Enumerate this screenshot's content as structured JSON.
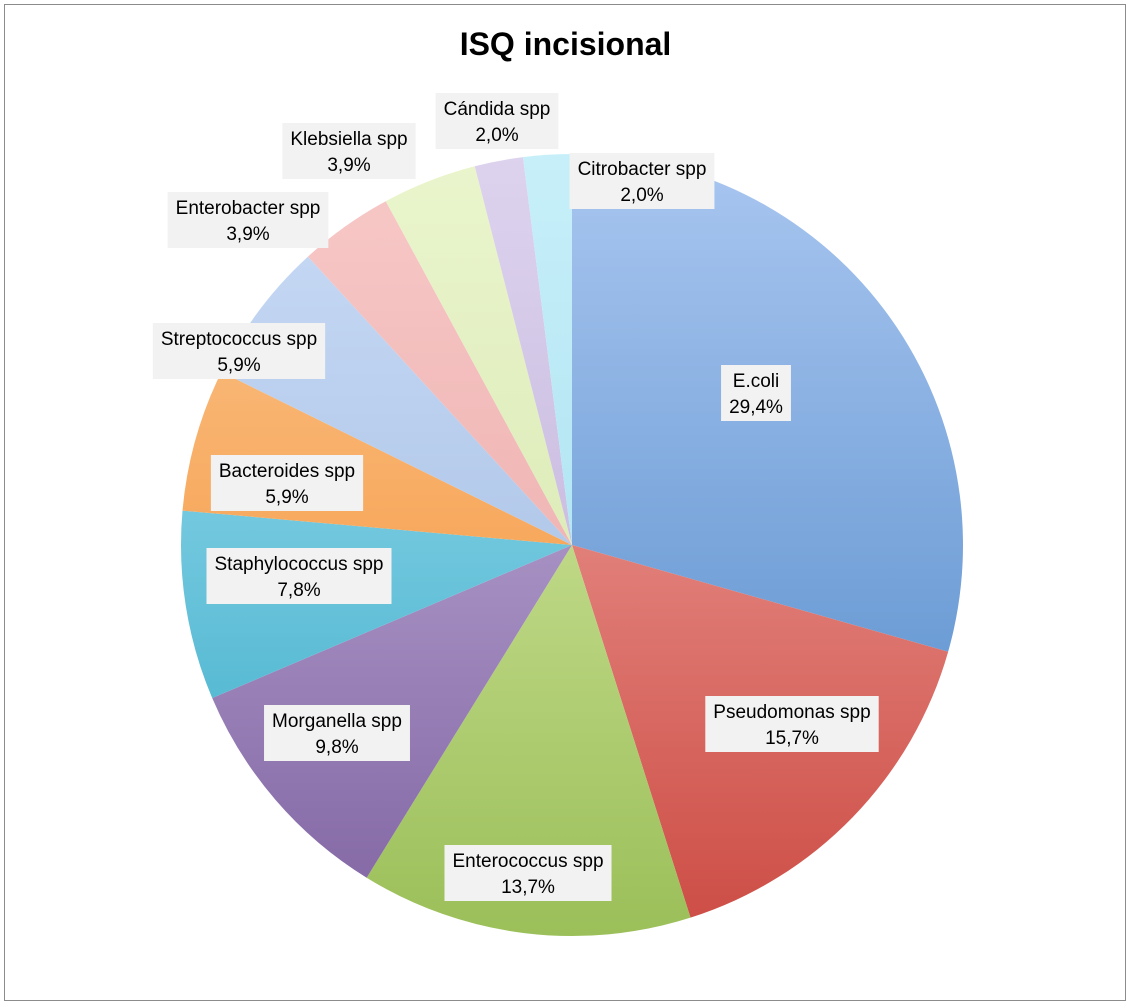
{
  "chart_data": {
    "type": "pie",
    "title": "ISQ incisional",
    "slices": [
      {
        "label": "E.coli",
        "value": 29.4,
        "display": "29,4%",
        "color_light": "#a9c6f0",
        "color_dark": "#4a85c6"
      },
      {
        "label": "Pseudomonas spp",
        "value": 15.7,
        "display": "15,7%",
        "color_light": "#f6b2ae",
        "color_dark": "#cc4c44"
      },
      {
        "label": "Enterococcus spp",
        "value": 13.7,
        "display": "13,7%",
        "color_light": "#e2f1b3",
        "color_dark": "#9bbf59"
      },
      {
        "label": "Morganella spp",
        "value": 9.8,
        "display": "9,8%",
        "color_light": "#cdbde3",
        "color_dark": "#8064a2"
      },
      {
        "label": "Staphylococcus spp",
        "value": 7.8,
        "display": "7,8%",
        "color_light": "#a6e3f3",
        "color_dark": "#36a9c6"
      },
      {
        "label": "Bacteroides spp",
        "value": 5.9,
        "display": "5,9%",
        "color_light": "#fbc690",
        "color_dark": "#f38b2a"
      },
      {
        "label": "Streptococcus spp",
        "value": 5.9,
        "display": "5,9%",
        "color_light": "#c9dcf7",
        "color_dark": "#9db6dc"
      },
      {
        "label": "Enterobacter spp",
        "value": 3.9,
        "display": "3,9%",
        "color_light": "#f7c9c8",
        "color_dark": "#e8a3a1"
      },
      {
        "label": "Klebsiella spp",
        "value": 3.9,
        "display": "3,9%",
        "color_light": "#eaf5cd",
        "color_dark": "#d2e3a6"
      },
      {
        "label": "Cándida spp",
        "value": 2.0,
        "display": "2,0%",
        "color_light": "#ddd3ee",
        "color_dark": "#b9a8d4"
      },
      {
        "label": "Citrobacter spp",
        "value": 2.0,
        "display": "2,0%",
        "color_light": "#c7eff9",
        "color_dark": "#9edcec"
      }
    ],
    "legend": "none",
    "data_labels": "category and percentage"
  }
}
